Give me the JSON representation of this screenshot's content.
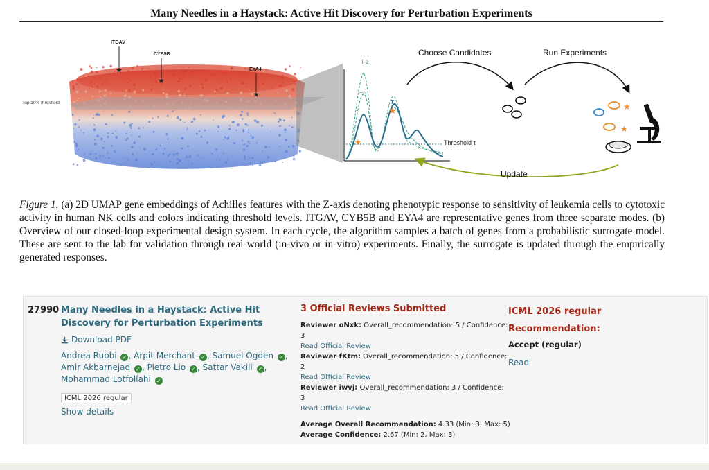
{
  "paper": {
    "title": "Many Needles in a Haystack: Active Hit Discovery for Perturbation Experiments"
  },
  "figure": {
    "umap": {
      "threshold_label": "Top 10% threshold",
      "genes": [
        "ITGAV",
        "CYB5B",
        "EYA4"
      ]
    },
    "curve": {
      "labels": [
        "T-2",
        "T-1",
        "T"
      ],
      "threshold_label": "Threshold τ"
    },
    "loop": {
      "choose_label": "Choose Candidates",
      "run_label": "Run Experiments",
      "update_label": "Update"
    },
    "caption_label": "Figure 1.",
    "caption_text": " (a) 2D UMAP gene embeddings of Achilles features with the Z-axis denoting phenotypic response to sensitivity of leukemia cells to cytotoxic activity in human NK cells and colors indicating threshold levels. ITGAV, CYB5B and EYA4 are representative genes from three separate modes. (b) Overview of our closed-loop experimental design system. In each cycle, the algorithm samples a batch of genes from a probabilistic surrogate model. These are sent to the lab for validation through real-world (in-vivo or in-vitro) experiments. Finally, the surrogate is updated through the empirically generated responses."
  },
  "listing": {
    "number": "27990",
    "title": "Many Needles in a Haystack: Active Hit Discovery for Perturbation Experiments",
    "pdf_label": "Download PDF",
    "authors": [
      "Andrea Rubbi",
      "Arpit Merchant",
      "Samuel Ogden",
      "Amir Akbarnejad",
      "Pietro Lio",
      "Sattar Vakili",
      "Mohammad Lotfollahi"
    ],
    "venue": "ICML 2026 regular",
    "show_details": "Show details",
    "reviews_heading": "3 Official Reviews Submitted",
    "reviews": [
      {
        "reviewer": "Reviewer oNxk:",
        "summary": "Overall_recommendation: 5 / Confidence: 3",
        "link": "Read Official Review"
      },
      {
        "reviewer": "Reviewer fKtm:",
        "summary": "Overall_recommendation: 5 / Confidence: 2",
        "link": "Read Official Review"
      },
      {
        "reviewer": "Reviewer iwvj:",
        "summary": "Overall_recommendation: 3 / Confidence: 3",
        "link": "Read Official Review"
      }
    ],
    "avg_rec_label": "Average Overall Recommendation:",
    "avg_rec_value": "4.33 (Min: 3, Max: 5)",
    "avg_conf_label": "Average Confidence:",
    "avg_conf_value": "2.67 (Min: 2, Max: 3)",
    "decision_heading": "ICML 2026 regular Recommendation:",
    "decision_value": "Accept (regular)",
    "decision_read": "Read"
  },
  "colors": {
    "link": "#2e6a80",
    "accent_red": "#a52a1a",
    "check_green": "#3a8a3e",
    "umap_red": "#d7412f",
    "umap_blue": "#5a7fd6",
    "curve_teal": "#2b6f8e",
    "curve_green": "#3a9a82",
    "star_orange": "#f08a2a",
    "update_arrow": "#8aa51a"
  },
  "icons": [
    "download-icon",
    "check-circle-icon",
    "star-icon",
    "bacteria-icon",
    "microscope-icon",
    "petri-dish-icon"
  ]
}
